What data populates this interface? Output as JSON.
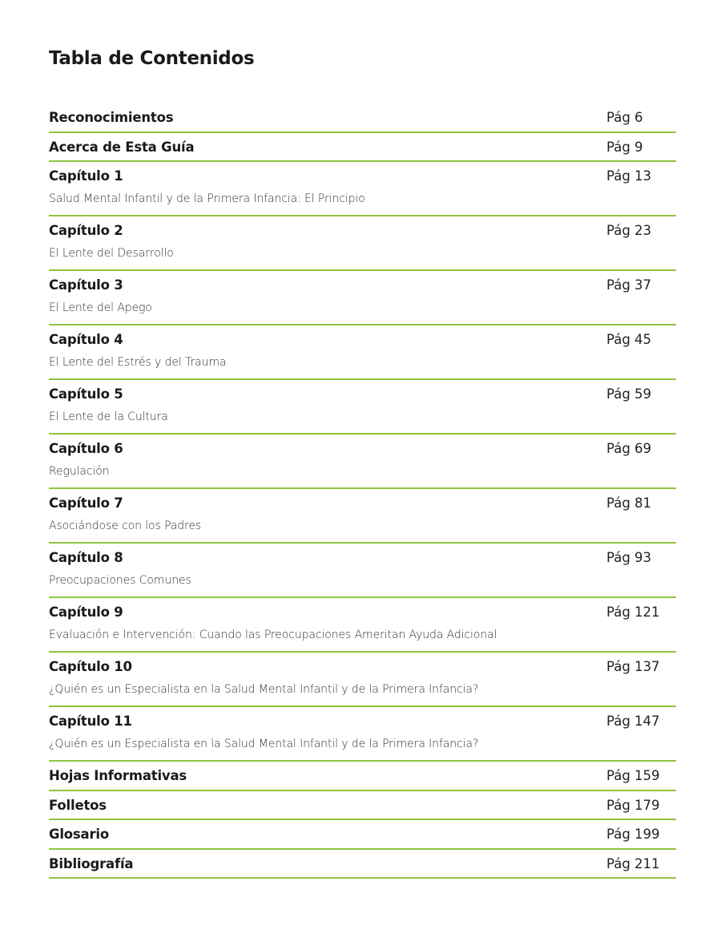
{
  "title": "Tabla de Contenidos",
  "accent_color": "#8dc63f",
  "entries": [
    {
      "label": "Reconocimientos",
      "subtitle": "",
      "page": "Pág 6"
    },
    {
      "label": "Acerca de Esta Guía",
      "subtitle": "",
      "page": "Pág 9"
    },
    {
      "label": "Capítulo 1",
      "subtitle": "Salud Mental Infantil y de la Primera Infancia: El Principio",
      "page": "Pág 13"
    },
    {
      "label": "Capítulo 2",
      "subtitle": "El Lente del Desarrollo",
      "page": "Pág 23"
    },
    {
      "label": "Capítulo 3",
      "subtitle": "El Lente del Apego",
      "page": "Pág 37"
    },
    {
      "label": "Capítulo 4",
      "subtitle": "El Lente del Estrés y del Trauma",
      "page": "Pág 45"
    },
    {
      "label": "Capítulo 5",
      "subtitle": "El Lente de la Cultura",
      "page": "Pág 59"
    },
    {
      "label": "Capítulo 6",
      "subtitle": "Regulación",
      "page": "Pág 69"
    },
    {
      "label": "Capítulo 7",
      "subtitle": "Asociándose con los Padres",
      "page": "Pág 81"
    },
    {
      "label": "Capítulo 8",
      "subtitle": "Preocupaciones Comunes",
      "page": "Pág 93"
    },
    {
      "label": "Capítulo 9",
      "subtitle": "Evaluación e Intervención: Cuando las Preocupaciones Ameritan Ayuda Adicional",
      "page": "Pág 121"
    },
    {
      "label": "Capítulo 10",
      "subtitle": "¿Quién es un Especialista en la Salud Mental Infantil y de la Primera Infancia?",
      "page": "Pág 137"
    },
    {
      "label": "Capítulo 11",
      "subtitle": "¿Quién es un Especialista en la Salud Mental Infantil y de la Primera Infancia?",
      "page": "Pág 147"
    },
    {
      "label": "Hojas Informativas",
      "subtitle": "",
      "page": "Pág 159"
    },
    {
      "label": "Folletos",
      "subtitle": "",
      "page": "Pág 179"
    },
    {
      "label": "Glosario",
      "subtitle": "",
      "page": "Pág 199"
    },
    {
      "label": "Bibliografía",
      "subtitle": "",
      "page": "Pág 211"
    }
  ]
}
